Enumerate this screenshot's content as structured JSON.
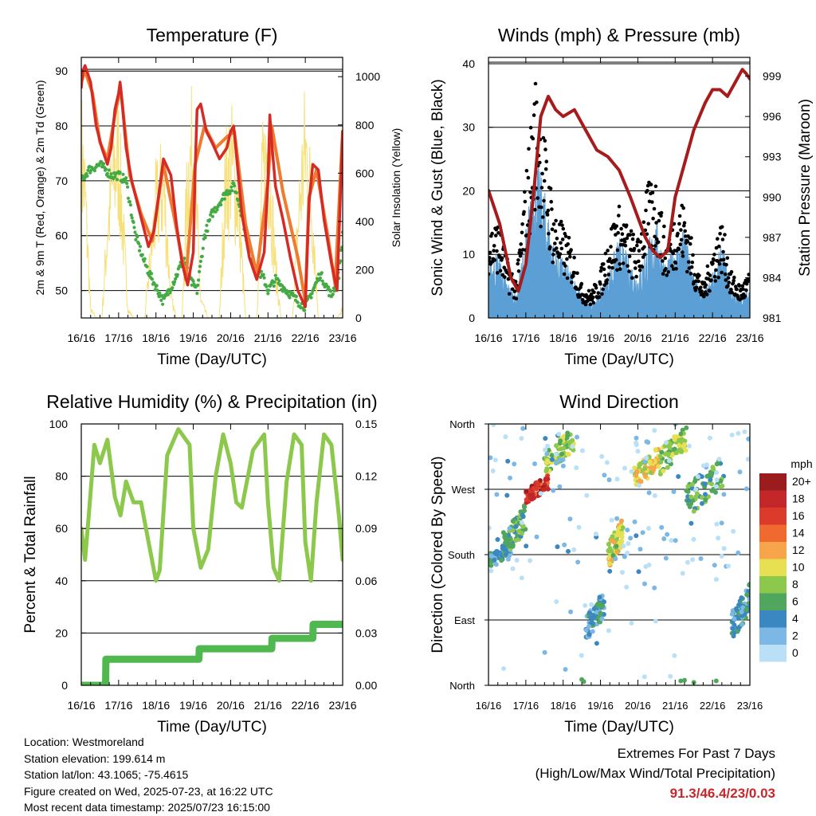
{
  "colors": {
    "temp_2m": "#d62a24",
    "temp_9m": "#f07a2e",
    "dewpoint": "#44ab44",
    "solar": "#f6e07a",
    "wind_speed": "#5b9fd5",
    "wind_gust": "#000000",
    "pressure": "#a61c1c",
    "humidity": "#8cc84b",
    "precip": "#4fb84f"
  },
  "chart_data": [
    {
      "id": "temperature",
      "type": "line",
      "title": "Temperature (F)",
      "xlabel": "Time (Day/UTC)",
      "ylabel": "2m & 9m T (Red, Orange) & 2m Td (Green)",
      "y2label": "Solar Insolation (Yellow)",
      "x_ticks": [
        "16/16",
        "17/16",
        "18/16",
        "19/16",
        "20/16",
        "21/16",
        "22/16",
        "23/16"
      ],
      "y_ticks": [
        50,
        60,
        70,
        80,
        90
      ],
      "y2_ticks": [
        0,
        200,
        400,
        600,
        800,
        1000
      ],
      "ylim": [
        45,
        92.5
      ],
      "y2lim": [
        0,
        1080
      ],
      "grid": true,
      "series": [
        {
          "name": "2m T",
          "axis": "left",
          "x": [
            0,
            0.04,
            0.1,
            0.25,
            0.4,
            0.55,
            0.7,
            0.8,
            0.9,
            1.0,
            1.04,
            1.1,
            1.2,
            1.35,
            1.5,
            1.65,
            1.8,
            1.95,
            2.2,
            2.4,
            2.55,
            2.7,
            2.85,
            3.0,
            3.05,
            3.1,
            3.2,
            3.35,
            3.5,
            3.7,
            3.9,
            4.0,
            4.08,
            4.15,
            4.3,
            4.5,
            4.7,
            4.9,
            5.0,
            5.05,
            5.1,
            5.2,
            5.4,
            5.6,
            5.8,
            6.0,
            6.1,
            6.2,
            6.35,
            6.5,
            6.7,
            6.85,
            7.0
          ],
          "values": [
            87,
            90,
            91,
            88,
            80,
            76,
            73,
            76,
            83,
            86,
            88,
            84,
            76,
            70,
            66,
            62,
            58,
            61,
            74,
            71,
            62,
            55,
            51,
            57,
            72,
            83,
            84,
            79,
            77,
            74,
            76,
            79,
            80,
            75,
            64,
            56,
            52,
            57,
            70,
            82,
            77,
            69,
            63,
            56,
            50,
            47,
            66,
            73,
            72,
            63,
            55,
            50,
            79
          ]
        },
        {
          "name": "9m T",
          "axis": "left",
          "x": [
            0,
            0.1,
            0.3,
            0.5,
            0.7,
            0.9,
            1.05,
            1.3,
            1.6,
            1.9,
            2.2,
            2.5,
            2.8,
            3.05,
            3.3,
            3.6,
            3.9,
            4.1,
            4.4,
            4.7,
            5.0,
            5.1,
            5.4,
            5.8,
            6.0,
            6.1,
            6.3,
            6.6,
            6.8,
            7.0
          ],
          "values": [
            88,
            90,
            86,
            77,
            74,
            82,
            87,
            71,
            64,
            59,
            73,
            63,
            52,
            73,
            80,
            76,
            78,
            79,
            62,
            53,
            70,
            80,
            68,
            56,
            48,
            67,
            72,
            60,
            51,
            79
          ]
        },
        {
          "name": "2m Td",
          "axis": "left",
          "x": [
            0,
            0.2,
            0.5,
            0.8,
            1.0,
            1.2,
            1.45,
            1.7,
            1.9,
            2.2,
            2.5,
            2.75,
            2.9,
            3.1,
            3.3,
            3.5,
            3.7,
            3.9,
            4.1,
            4.3,
            4.5,
            4.7,
            4.9,
            5.0,
            5.2,
            5.5,
            5.8,
            6.0,
            6.2,
            6.4,
            6.7,
            6.9,
            7.0
          ],
          "values": [
            70,
            72,
            73,
            71,
            71,
            70,
            60,
            55,
            52,
            48,
            52,
            56,
            52,
            50,
            60,
            64,
            66,
            68,
            69,
            64,
            57,
            54,
            52,
            50,
            52,
            50,
            48,
            47,
            50,
            53,
            49,
            53,
            60
          ]
        },
        {
          "name": "Solar",
          "axis": "right",
          "x": [
            0,
            0.1,
            0.25,
            0.4,
            0.55,
            0.7,
            0.85,
            1.0,
            1.1,
            1.25,
            1.4,
            1.55,
            1.7,
            1.85,
            2.0,
            2.2,
            2.4,
            2.55,
            2.7,
            2.85,
            3.0,
            3.2,
            3.4,
            3.55,
            3.7,
            3.85,
            4.0,
            4.2,
            4.4,
            4.55,
            4.7,
            4.85,
            5.0,
            5.2,
            5.35,
            5.5,
            5.65,
            5.85,
            6.0,
            6.2,
            6.35,
            6.5,
            6.7,
            6.85,
            7.0
          ],
          "values": [
            980,
            750,
            50,
            0,
            0,
            520,
            850,
            980,
            600,
            50,
            0,
            0,
            0,
            350,
            660,
            800,
            120,
            0,
            0,
            850,
            1020,
            100,
            0,
            0,
            0,
            780,
            950,
            700,
            0,
            0,
            0,
            820,
            1010,
            300,
            0,
            0,
            0,
            700,
            1030,
            600,
            0,
            0,
            0,
            0,
            50
          ]
        }
      ]
    },
    {
      "id": "winds",
      "type": "scatter",
      "title": "Winds (mph) & Pressure (mb)",
      "xlabel": "Time (Day/UTC)",
      "ylabel": "Sonic Wind & Gust (Blue, Black)",
      "y2label": "Station Pressure (Maroon)",
      "x_ticks": [
        "16/16",
        "17/16",
        "18/16",
        "19/16",
        "20/16",
        "21/16",
        "22/16",
        "23/16"
      ],
      "y_ticks": [
        0,
        10,
        20,
        30,
        40
      ],
      "y2_ticks": [
        981,
        984,
        987,
        990,
        993,
        996,
        999
      ],
      "ylim": [
        0,
        41
      ],
      "y2lim": [
        981,
        1000.4
      ],
      "grid": true,
      "series": [
        {
          "name": "Wind speed (envelope)",
          "axis": "left",
          "x": [
            0,
            0.25,
            0.5,
            0.75,
            1.0,
            1.25,
            1.5,
            1.75,
            2.0,
            2.25,
            2.5,
            2.75,
            3.0,
            3.25,
            3.5,
            3.75,
            4.0,
            4.25,
            4.5,
            4.75,
            5.0,
            5.25,
            5.5,
            5.75,
            6.0,
            6.25,
            6.5,
            6.75,
            7.0
          ],
          "values": [
            8,
            9,
            5,
            3,
            12,
            22,
            17,
            10,
            8,
            6,
            3,
            2,
            4,
            7,
            11,
            8,
            6,
            10,
            13,
            7,
            10,
            12,
            6,
            3,
            6,
            10,
            4,
            3,
            4
          ]
        },
        {
          "name": "Wind gust",
          "axis": "left",
          "x": [
            0,
            0.25,
            0.5,
            0.75,
            1.0,
            1.25,
            1.5,
            1.75,
            2.0,
            2.25,
            2.5,
            2.75,
            3.0,
            3.25,
            3.5,
            3.75,
            4.0,
            4.25,
            4.5,
            4.75,
            5.0,
            5.25,
            5.5,
            5.75,
            6.0,
            6.25,
            6.5,
            6.75,
            7.0
          ],
          "values": [
            14,
            15,
            9,
            6,
            22,
            37,
            28,
            17,
            14,
            11,
            5,
            4,
            7,
            14,
            17,
            14,
            12,
            20,
            22,
            12,
            17,
            18,
            10,
            5,
            11,
            15,
            7,
            5,
            7
          ]
        },
        {
          "name": "Pressure",
          "axis": "right",
          "x": [
            0,
            0.3,
            0.6,
            0.8,
            1.0,
            1.2,
            1.4,
            1.6,
            1.8,
            2.0,
            2.3,
            2.6,
            2.9,
            3.2,
            3.5,
            3.8,
            4.0,
            4.2,
            4.4,
            4.6,
            4.8,
            5.0,
            5.2,
            5.5,
            5.8,
            6.0,
            6.2,
            6.4,
            6.6,
            6.8,
            6.9,
            7.0
          ],
          "values": [
            990.5,
            988,
            984,
            983,
            985,
            990,
            996,
            997.5,
            996.5,
            996,
            996.5,
            995,
            993.5,
            993,
            992,
            990,
            988.5,
            987,
            986,
            985.5,
            986,
            990,
            992,
            995,
            997,
            998,
            998,
            997.5,
            998.5,
            999.5,
            999.2,
            998.8
          ]
        }
      ]
    },
    {
      "id": "humidity",
      "type": "line",
      "title": "Relative Humidity (%) & Precipitation (in)",
      "xlabel": "Time (Day/UTC)",
      "ylabel": "Percent & Total Rainfall",
      "x_ticks": [
        "16/16",
        "17/16",
        "18/16",
        "19/16",
        "20/16",
        "21/16",
        "22/16",
        "23/16"
      ],
      "y_ticks": [
        0,
        20,
        40,
        60,
        80,
        100
      ],
      "y2_ticks": [
        "0.00",
        "0.03",
        "0.06",
        "0.09",
        "0.12",
        "0.15"
      ],
      "ylim": [
        0,
        100
      ],
      "y2lim": [
        0,
        0.15
      ],
      "grid": true,
      "series": [
        {
          "name": "RH",
          "axis": "left",
          "x": [
            0,
            0.1,
            0.2,
            0.35,
            0.5,
            0.7,
            0.9,
            1.05,
            1.2,
            1.4,
            1.6,
            1.8,
            2.0,
            2.1,
            2.3,
            2.6,
            2.9,
            3.0,
            3.2,
            3.4,
            3.6,
            3.8,
            4.0,
            4.15,
            4.3,
            4.6,
            4.9,
            5.0,
            5.15,
            5.3,
            5.5,
            5.7,
            5.9,
            6.0,
            6.15,
            6.3,
            6.5,
            6.7,
            6.9,
            7.0
          ],
          "values": [
            60,
            48,
            65,
            92,
            85,
            94,
            72,
            65,
            78,
            70,
            70,
            55,
            40,
            44,
            88,
            98,
            92,
            60,
            45,
            52,
            80,
            96,
            85,
            70,
            68,
            90,
            96,
            70,
            45,
            40,
            78,
            96,
            92,
            55,
            40,
            70,
            96,
            92,
            65,
            48
          ]
        },
        {
          "name": "Precipitation",
          "axis": "right",
          "x": [
            0,
            0.3,
            0.65,
            0.66,
            1.0,
            1.5,
            2.0,
            2.5,
            3.0,
            3.15,
            3.16,
            3.5,
            4.0,
            4.5,
            5.0,
            5.1,
            5.11,
            5.5,
            6.0,
            6.2,
            6.21,
            6.6,
            7.0
          ],
          "values": [
            0,
            0,
            0,
            0.015,
            0.015,
            0.015,
            0.015,
            0.015,
            0.015,
            0.015,
            0.021,
            0.021,
            0.021,
            0.021,
            0.021,
            0.021,
            0.027,
            0.027,
            0.027,
            0.027,
            0.035,
            0.035,
            0.035
          ]
        }
      ]
    },
    {
      "id": "direction",
      "type": "scatter",
      "title": "Wind Direction",
      "xlabel": "Time (Day/UTC)",
      "ylabel": "Direction (Colored By Speed)",
      "x_ticks": [
        "16/16",
        "17/16",
        "18/16",
        "19/16",
        "20/16",
        "21/16",
        "22/16",
        "23/16"
      ],
      "y_ticks": [
        "North",
        "East",
        "South",
        "West",
        "North"
      ],
      "y_tick_values": [
        0,
        90,
        180,
        270,
        360
      ],
      "colorbar_label": "mph",
      "colorbar_levels": [
        "20+",
        "18",
        "16",
        "14",
        "12",
        "10",
        "8",
        "6",
        "4",
        "2",
        "0"
      ],
      "colorbar_colors": [
        "#9b1c1c",
        "#c3272a",
        "#dc3a2a",
        "#f06a30",
        "#f8a44a",
        "#e6e052",
        "#8cc84b",
        "#4fa65c",
        "#3b87c2",
        "#7bb8e6",
        "#b9e0f6"
      ],
      "grid": true,
      "clusters": [
        {
          "x": [
            0,
            0.6
          ],
          "dir": [
            160,
            200
          ],
          "speed": 4
        },
        {
          "x": [
            0.4,
            1.0
          ],
          "dir": [
            175,
            250
          ],
          "speed": 6
        },
        {
          "x": [
            1.0,
            1.6
          ],
          "dir": [
            250,
            290
          ],
          "speed": 17
        },
        {
          "x": [
            1.5,
            2.3
          ],
          "dir": [
            290,
            358
          ],
          "speed": 8
        },
        {
          "x": [
            2.6,
            3.1
          ],
          "dir": [
            60,
            130
          ],
          "speed": 4
        },
        {
          "x": [
            3.2,
            3.6
          ],
          "dir": [
            160,
            230
          ],
          "speed": 9
        },
        {
          "x": [
            3.9,
            4.6
          ],
          "dir": [
            270,
            330
          ],
          "speed": 10
        },
        {
          "x": [
            4.6,
            5.3
          ],
          "dir": [
            290,
            358
          ],
          "speed": 8
        },
        {
          "x": [
            5.3,
            6.3
          ],
          "dir": [
            230,
            320
          ],
          "speed": 6
        },
        {
          "x": [
            6.5,
            7.0
          ],
          "dir": [
            60,
            140
          ],
          "speed": 4
        },
        {
          "x": [
            0,
            7.0
          ],
          "dir": [
            0,
            360
          ],
          "speed": 1
        }
      ]
    }
  ],
  "footer": {
    "location": "Location: Westmoreland",
    "elevation": "Station elevation: 199.614 m",
    "latlon": "Station lat/lon: 43.1065; -75.4615",
    "created": "Figure created on Wed, 2025-07-23, at 16:22 UTC",
    "timestamp": "Most recent data timestamp: 2025/07/23 16:15:00"
  },
  "extremes": {
    "title": "Extremes For Past 7 Days",
    "subtitle": "(High/Low/Max Wind/Total Precipitation)",
    "values": "91.3/46.4/23/0.03"
  }
}
